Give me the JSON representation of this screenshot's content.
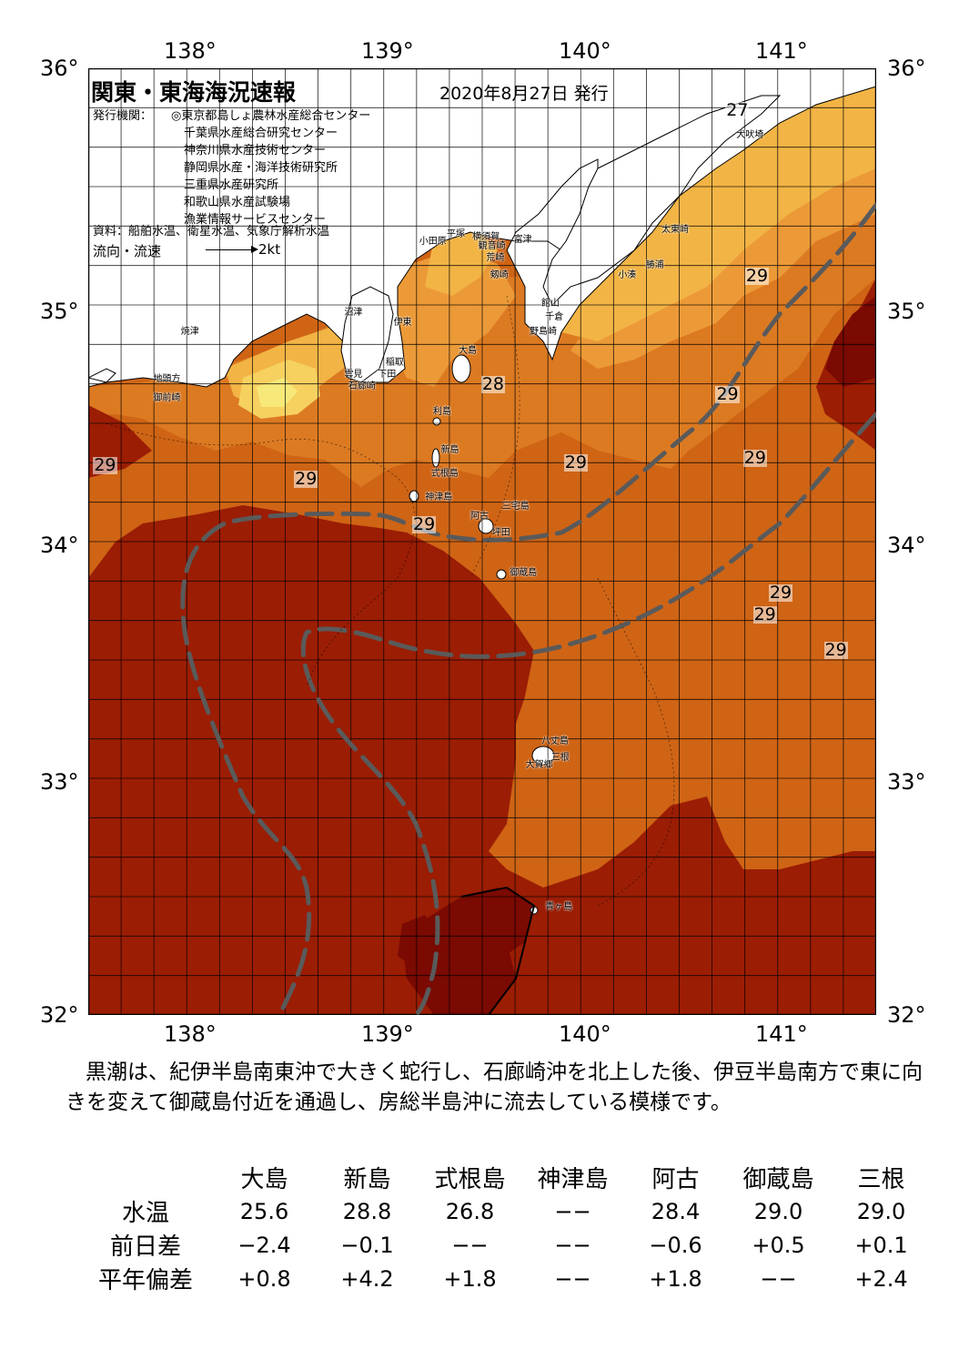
{
  "header": {
    "title": "関東・東海海況速報",
    "date": "2020年8月27日 発行",
    "institutions_label": "発行機関：",
    "institutions": [
      "◎東京都島しょ農林水産総合センター",
      "千葉県水産総合研究センター",
      "神奈川県水産技術センター",
      "静岡県水産・海洋技術研究所",
      "三重県水産研究所",
      "和歌山県水産試験場",
      "漁業情報サービスセンター"
    ],
    "source": "資料：船舶水温、衛星水温、気象庁解析水温",
    "flow_label": "流向・流速",
    "flow_scale": "2kt"
  },
  "axes": {
    "lon_labels": [
      "138°",
      "139°",
      "140°",
      "141°"
    ],
    "lat_labels": [
      "36°",
      "35°",
      "34°",
      "33°",
      "32°"
    ]
  },
  "map_labels": [
    {
      "text": "小田原",
      "lon": 139.18,
      "lat": 35.28
    },
    {
      "text": "平塚",
      "lon": 139.32,
      "lat": 35.31
    },
    {
      "text": "横須賀",
      "lon": 139.45,
      "lat": 35.3
    },
    {
      "text": "観音崎",
      "lon": 139.48,
      "lat": 35.26
    },
    {
      "text": "富津",
      "lon": 139.66,
      "lat": 35.29
    },
    {
      "text": "太東崎",
      "lon": 140.41,
      "lat": 35.33
    },
    {
      "text": "勝浦",
      "lon": 140.33,
      "lat": 35.18
    },
    {
      "text": "小湊",
      "lon": 140.19,
      "lat": 35.14
    },
    {
      "text": "館山",
      "lon": 139.8,
      "lat": 35.02
    },
    {
      "text": "千倉",
      "lon": 139.82,
      "lat": 34.96
    },
    {
      "text": "野島崎",
      "lon": 139.74,
      "lat": 34.9
    },
    {
      "text": "剱崎",
      "lon": 139.54,
      "lat": 35.14
    },
    {
      "text": "荒崎",
      "lon": 139.52,
      "lat": 35.21
    },
    {
      "text": "犬吠埼",
      "lon": 140.79,
      "lat": 35.73
    },
    {
      "text": "沼津",
      "lon": 138.8,
      "lat": 34.98
    },
    {
      "text": "伊東",
      "lon": 139.05,
      "lat": 34.94
    },
    {
      "text": "焼津",
      "lon": 137.97,
      "lat": 34.9
    },
    {
      "text": "稲取",
      "lon": 139.01,
      "lat": 34.77
    },
    {
      "text": "下田",
      "lon": 138.97,
      "lat": 34.72
    },
    {
      "text": "雲見",
      "lon": 138.8,
      "lat": 34.72
    },
    {
      "text": "石廊崎",
      "lon": 138.82,
      "lat": 34.67
    },
    {
      "text": "地頭方",
      "lon": 137.83,
      "lat": 34.7
    },
    {
      "text": "御前崎",
      "lon": 137.83,
      "lat": 34.62
    },
    {
      "text": "大島",
      "lon": 139.38,
      "lat": 34.82
    },
    {
      "text": "利島",
      "lon": 139.25,
      "lat": 34.56
    },
    {
      "text": "新島",
      "lon": 139.29,
      "lat": 34.4
    },
    {
      "text": "式根島",
      "lon": 139.24,
      "lat": 34.3
    },
    {
      "text": "神津島",
      "lon": 139.21,
      "lat": 34.2
    },
    {
      "text": "阿古",
      "lon": 139.44,
      "lat": 34.12
    },
    {
      "text": "三宅島",
      "lon": 139.6,
      "lat": 34.16
    },
    {
      "text": "坪田",
      "lon": 139.55,
      "lat": 34.05
    },
    {
      "text": "御蔵島",
      "lon": 139.64,
      "lat": 33.88
    },
    {
      "text": "八丈島",
      "lon": 139.8,
      "lat": 33.17
    },
    {
      "text": "三根",
      "lon": 139.85,
      "lat": 33.1
    },
    {
      "text": "大賀郷",
      "lon": 139.72,
      "lat": 33.07
    },
    {
      "text": "青ヶ島",
      "lon": 139.82,
      "lat": 32.47
    }
  ],
  "temperature_labels": [
    {
      "text": "27",
      "lon": 140.79,
      "lat": 35.82
    },
    {
      "text": "29",
      "lon": 140.89,
      "lat": 35.12
    },
    {
      "text": "28",
      "lon": 139.55,
      "lat": 34.66
    },
    {
      "text": "29",
      "lon": 140.74,
      "lat": 34.62
    },
    {
      "text": "29",
      "lon": 137.58,
      "lat": 34.32
    },
    {
      "text": "29",
      "lon": 138.6,
      "lat": 34.26
    },
    {
      "text": "29",
      "lon": 139.97,
      "lat": 34.33
    },
    {
      "text": "29",
      "lon": 140.88,
      "lat": 34.35
    },
    {
      "text": "29",
      "lon": 139.2,
      "lat": 34.07
    },
    {
      "text": "29",
      "lon": 141.01,
      "lat": 33.78
    },
    {
      "text": "29",
      "lon": 140.93,
      "lat": 33.69
    },
    {
      "text": "29",
      "lon": 141.29,
      "lat": 33.54
    }
  ],
  "colors": {
    "land": "#ffffff",
    "t_lt24": "#f7e87a",
    "t_24_25": "#f6d160",
    "t_25_26": "#f2b445",
    "t_26_27": "#ec9a38",
    "t_27_28": "#dc7a22",
    "t_28_29": "#cf6415",
    "t_29_30": "#9b1d04",
    "t_gt30": "#7a0a02",
    "kuroshio": "#5a5a5a",
    "grid": "#000000"
  },
  "summary": "黒潮は、紀伊半島南東沖で大きく蛇行し、石廊崎沖を北上した後、伊豆半島南方で東に向きを変えて御蔵島付近を通過し、房総半島沖に流去している模様です。",
  "observations": {
    "stations": [
      "大島",
      "新島",
      "式根島",
      "神津島",
      "阿古",
      "御蔵島",
      "三根"
    ],
    "rows": [
      {
        "label": "水温",
        "values": [
          "25.6",
          "28.8",
          "26.8",
          "−−",
          "28.4",
          "29.0",
          "29.0"
        ]
      },
      {
        "label": "前日差",
        "values": [
          "−2.4",
          "−0.1",
          "−−",
          "−−",
          "−0.6",
          "+0.5",
          "+0.1"
        ]
      },
      {
        "label": "平年偏差",
        "values": [
          "+0.8",
          "+4.2",
          "+1.8",
          "−−",
          "+1.8",
          "−−",
          "+2.4"
        ]
      }
    ]
  }
}
